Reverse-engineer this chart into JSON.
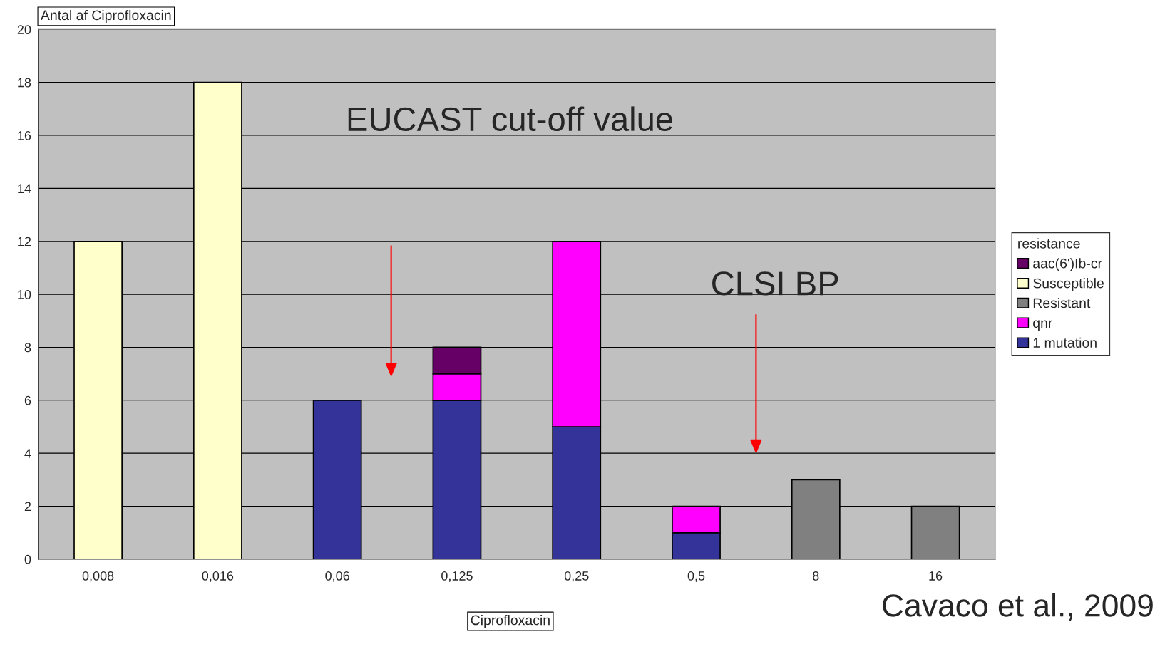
{
  "chart_data": {
    "type": "bar",
    "stacked": true,
    "xlabel": "Ciprofloxacin",
    "ylabel": "Antal af Ciprofloxacin",
    "legend_title": "resistance",
    "categories": [
      "0,008",
      "0,016",
      "0,06",
      "0,125",
      "0,25",
      "0,5",
      "8",
      "16"
    ],
    "series": [
      {
        "name": "1 mutation",
        "color": "#333399",
        "values": [
          null,
          null,
          6,
          6,
          5,
          1,
          null,
          null
        ]
      },
      {
        "name": "qnr",
        "color": "#ff00ff",
        "values": [
          null,
          null,
          null,
          1,
          7,
          1,
          null,
          null
        ]
      },
      {
        "name": "Resistant",
        "color": "#808080",
        "values": [
          null,
          null,
          null,
          null,
          null,
          null,
          3,
          2
        ]
      },
      {
        "name": "Susceptible",
        "color": "#ffffcc",
        "values": [
          12,
          18,
          null,
          null,
          null,
          null,
          null,
          null
        ]
      },
      {
        "name": "aac(6')Ib-cr",
        "color": "#660066",
        "values": [
          null,
          null,
          null,
          1,
          null,
          null,
          null,
          null
        ]
      }
    ],
    "ylim": [
      0,
      20
    ],
    "yticks": [
      0,
      2,
      4,
      6,
      8,
      10,
      12,
      14,
      16,
      18,
      20
    ],
    "grid": "y",
    "legend": "right",
    "annotations": [
      "EUCAST cut-off value",
      "CLSI BP",
      "Cavaco et al., 2009"
    ]
  }
}
